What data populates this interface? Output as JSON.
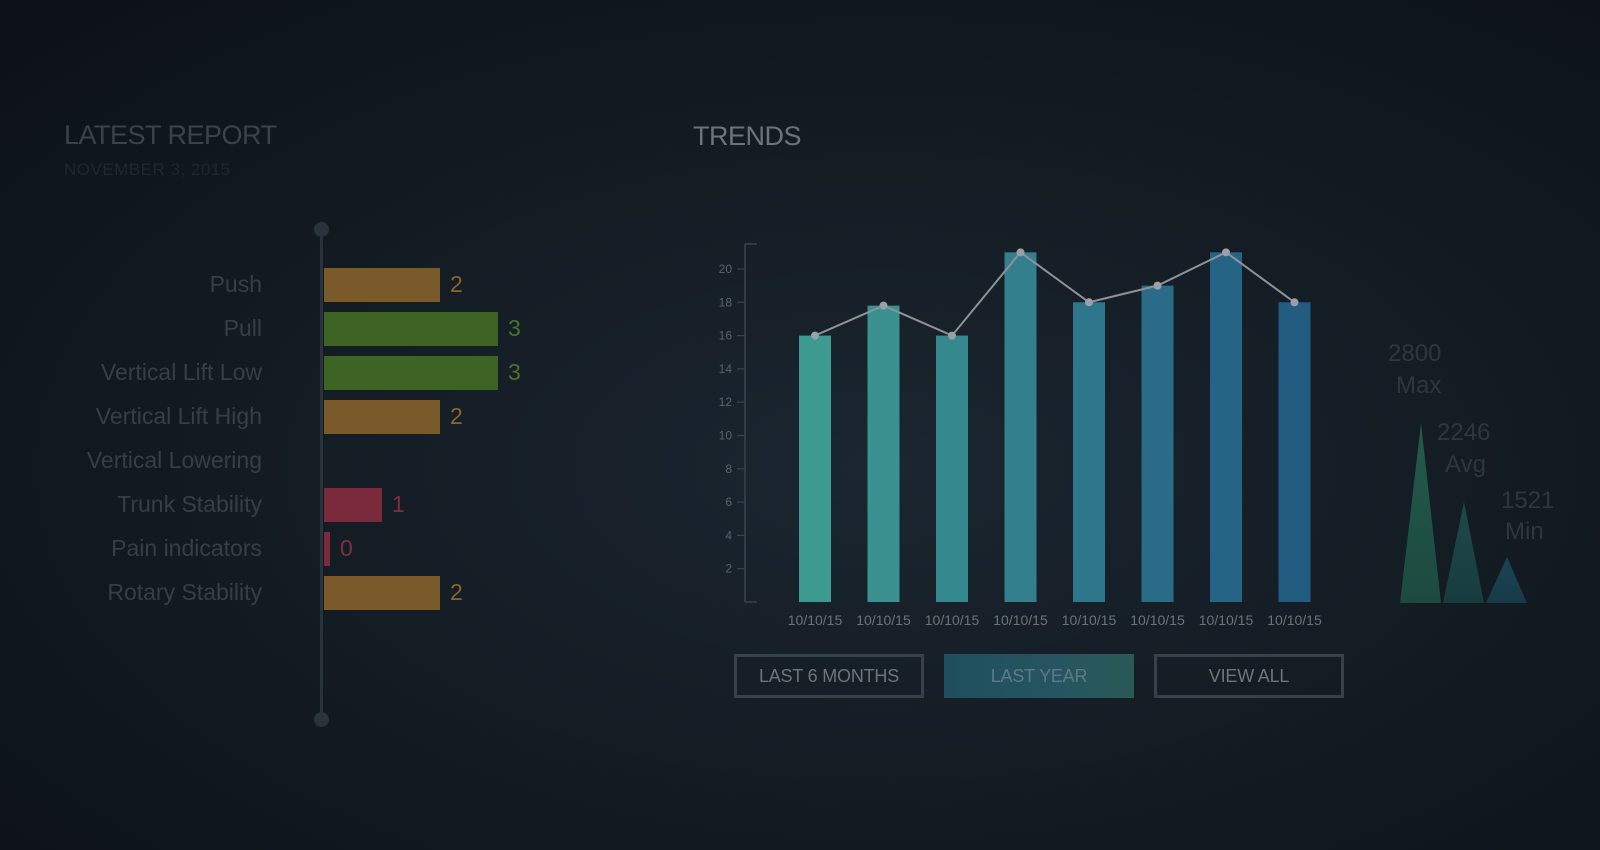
{
  "report": {
    "title": "LATEST REPORT",
    "date": "NOVEMBER 3, 2015",
    "metrics": [
      {
        "label": "Push",
        "value": 2,
        "value_text": "2",
        "color": "#7a5a2a",
        "text_color": "#8a6528"
      },
      {
        "label": "Pull",
        "value": 3,
        "value_text": "3",
        "color": "#3e6424",
        "text_color": "#4d7127"
      },
      {
        "label": "Vertical Lift Low",
        "value": 3,
        "value_text": "3",
        "color": "#3e6424",
        "text_color": "#4d7127"
      },
      {
        "label": "Vertical Lift High",
        "value": 2,
        "value_text": "2",
        "color": "#7a5a2a",
        "text_color": "#8a6528"
      },
      {
        "label": "Vertical Lowering",
        "value": null,
        "value_text": "",
        "color": "#000000",
        "text_color": "#000000"
      },
      {
        "label": "Trunk Stability",
        "value": 1,
        "value_text": "1",
        "color": "#7a2a3a",
        "text_color": "#7c2f3c"
      },
      {
        "label": "Pain indicators",
        "value": 0,
        "value_text": "0",
        "color": "#7a2a3a",
        "text_color": "#7c2f3c"
      },
      {
        "label": "Rotary Stability",
        "value": 2,
        "value_text": "2",
        "color": "#7a5a2a",
        "text_color": "#8a6528"
      }
    ]
  },
  "trends": {
    "title": "TRENDS",
    "buttons": {
      "last_6_months": "LAST 6 MONTHS",
      "last_year": "LAST YEAR",
      "view_all": "VIEW ALL"
    },
    "stats": {
      "max_value": "2800",
      "max_label": "Max",
      "avg_value": "2246",
      "avg_label": "Avg",
      "min_value": "1521",
      "min_label": "Min"
    }
  },
  "chart_data": {
    "type": "bar",
    "categories": [
      "10/10/15",
      "10/10/15",
      "10/10/15",
      "10/10/15",
      "10/10/15",
      "10/10/15",
      "10/10/15",
      "10/10/15"
    ],
    "series": [
      {
        "values": [
          16,
          17.8,
          16,
          21,
          18,
          19,
          21,
          18
        ]
      }
    ],
    "line_overlay": [
      16,
      17.8,
      16,
      21,
      18,
      19,
      21,
      18
    ],
    "yticks": [
      2,
      4,
      6,
      8,
      10,
      12,
      14,
      16,
      18,
      20
    ],
    "ylim": [
      0,
      21.5
    ],
    "grid": false,
    "bar_colors": [
      "#3d9a90",
      "#3a9190",
      "#36888f",
      "#337f8d",
      "#2d768c",
      "#2a6c88",
      "#266485",
      "#225c81"
    ]
  }
}
